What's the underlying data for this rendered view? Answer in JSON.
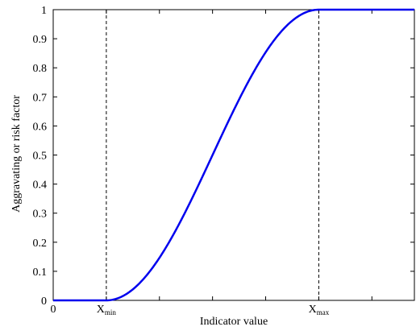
{
  "chart_data": {
    "type": "line",
    "title": "",
    "xlabel": "Indicator value",
    "ylabel": "Aggravating or risk factor",
    "xlim": [
      0,
      1.36
    ],
    "ylim": [
      0,
      1
    ],
    "grid": false,
    "legend": "none",
    "y_ticks": [
      {
        "value": 0,
        "label": "0"
      },
      {
        "value": 0.1,
        "label": "0.1"
      },
      {
        "value": 0.2,
        "label": "0.2"
      },
      {
        "value": 0.3,
        "label": "0.3"
      },
      {
        "value": 0.4,
        "label": "0.4"
      },
      {
        "value": 0.5,
        "label": "0.5"
      },
      {
        "value": 0.6,
        "label": "0.6"
      },
      {
        "value": 0.7,
        "label": "0.7"
      },
      {
        "value": 0.8,
        "label": "0.8"
      },
      {
        "value": 0.9,
        "label": "0.9"
      },
      {
        "value": 1,
        "label": "1"
      }
    ],
    "x_ticks": [
      0,
      0.2,
      0.4,
      0.6,
      0.8,
      1.0,
      1.2
    ],
    "x_labels": [
      {
        "value": 0,
        "main": "0",
        "sub": ""
      },
      {
        "value": 0.2,
        "main": "X",
        "sub": "min"
      },
      {
        "value": 1.0,
        "main": "X",
        "sub": "max"
      }
    ],
    "thresholds": [
      0.2,
      1.0
    ],
    "series": [
      {
        "x": [
          0,
          0.15,
          0.2,
          0.25,
          0.3,
          0.35,
          0.4,
          0.45,
          0.5,
          0.55,
          0.6,
          0.65,
          0.7,
          0.75,
          0.8,
          0.85,
          0.9,
          0.95,
          1.0,
          1.1,
          1.2,
          1.36
        ],
        "y": [
          0,
          0,
          0,
          0.01,
          0.04,
          0.08,
          0.15,
          0.22,
          0.31,
          0.4,
          0.5,
          0.6,
          0.69,
          0.78,
          0.85,
          0.92,
          0.96,
          0.99,
          1,
          1,
          1,
          1
        ]
      }
    ],
    "colors": {
      "curve": "#0000ee",
      "axes": "#000000",
      "threshold": "#000000"
    }
  }
}
